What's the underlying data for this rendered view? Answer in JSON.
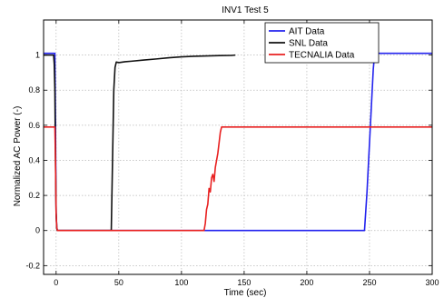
{
  "chart_data": {
    "type": "line",
    "title": "INV1 Test 5",
    "xlabel": "Time (sec)",
    "ylabel": "Normalized AC Power (-)",
    "xlim": [
      -10,
      300
    ],
    "ylim": [
      -0.25,
      1.2
    ],
    "xticks": [
      0,
      50,
      100,
      150,
      200,
      250,
      300
    ],
    "yticks": [
      -0.2,
      0,
      0.2,
      0.4,
      0.6,
      0.8,
      1
    ],
    "ytick_labels": [
      "-0.2",
      "0",
      "0.2",
      "0.4",
      "0.6",
      "0.8",
      "1"
    ],
    "grid": true,
    "legend_position": "top-right",
    "series": [
      {
        "name": "AIT Data",
        "color": "#2222ee",
        "x": [
          -10,
          -1,
          -0.5,
          0,
          0.5,
          1,
          240,
          246,
          248,
          250,
          252,
          253,
          254,
          255,
          260,
          300
        ],
        "y": [
          1.01,
          1.01,
          0.6,
          0.1,
          0.02,
          0,
          0,
          0,
          0.22,
          0.5,
          0.78,
          0.92,
          1.0,
          1.01,
          1.01,
          1.01
        ]
      },
      {
        "name": "SNL Data",
        "color": "#111111",
        "x": [
          -10,
          -2,
          -1.5,
          -1,
          -0.5,
          0,
          0.5,
          1,
          44,
          45,
          46,
          47,
          48,
          50,
          55,
          60,
          70,
          80,
          90,
          100,
          110,
          120,
          130,
          140,
          143
        ],
        "y": [
          1.0,
          1.0,
          0.95,
          0.8,
          0.4,
          0.1,
          0.01,
          0,
          0,
          0.4,
          0.8,
          0.93,
          0.96,
          0.957,
          0.962,
          0.965,
          0.972,
          0.978,
          0.985,
          0.99,
          0.993,
          0.995,
          0.997,
          0.998,
          1.0
        ]
      },
      {
        "name": "TECNALIA Data",
        "color": "#e82020",
        "x": [
          -10,
          -1,
          -0.5,
          0,
          0.5,
          1,
          118,
          119,
          120,
          121,
          122,
          123,
          124,
          125,
          126,
          127,
          128,
          129,
          130,
          131,
          132,
          300
        ],
        "y": [
          0.59,
          0.59,
          0.4,
          0.1,
          0.02,
          0,
          0,
          0.04,
          0.12,
          0.15,
          0.24,
          0.22,
          0.3,
          0.32,
          0.28,
          0.36,
          0.4,
          0.44,
          0.5,
          0.56,
          0.59,
          0.59
        ]
      }
    ]
  }
}
